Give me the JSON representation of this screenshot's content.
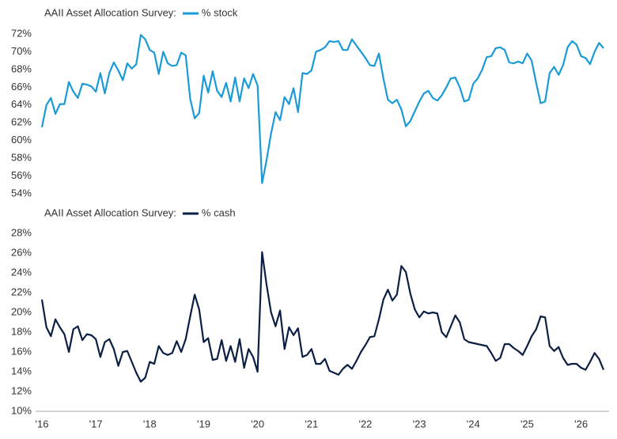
{
  "chart_data": [
    {
      "type": "line",
      "title": "AAII Asset Allocation Survey:",
      "series": [
        {
          "name": "% stock",
          "color": "#1a9bd7",
          "values": [
            61.5,
            64.0,
            64.8,
            63.0,
            64.1,
            64.1,
            66.6,
            65.5,
            64.8,
            66.4,
            66.3,
            66.1,
            65.5,
            67.6,
            65.3,
            67.6,
            68.8,
            67.9,
            66.8,
            68.7,
            68.1,
            68.6,
            71.9,
            71.4,
            70.2,
            69.9,
            67.5,
            70.0,
            68.7,
            68.4,
            68.5,
            69.9,
            69.6,
            64.7,
            62.5,
            63.1,
            67.3,
            65.4,
            67.8,
            65.6,
            64.9,
            66.5,
            64.4,
            67.1,
            64.4,
            67.0,
            65.9,
            67.5,
            66.2,
            55.2,
            57.8,
            60.8,
            63.2,
            62.3,
            64.9,
            64.1,
            65.9,
            63.2,
            67.6,
            67.5,
            67.9,
            70.0,
            70.2,
            70.5,
            71.2,
            71.1,
            71.2,
            70.2,
            70.2,
            71.4,
            70.7,
            70.0,
            69.3,
            68.5,
            68.4,
            69.8,
            67.0,
            64.6,
            64.2,
            64.6,
            63.5,
            61.6,
            62.2,
            63.3,
            64.4,
            65.3,
            65.6,
            64.8,
            64.5,
            65.1,
            66.0,
            67.0,
            67.1,
            66.0,
            64.4,
            64.6,
            66.4,
            67.0,
            68.0,
            69.4,
            69.5,
            70.4,
            70.5,
            70.2,
            68.8,
            68.7,
            68.9,
            68.7,
            69.8,
            69.0,
            66.5,
            64.2,
            64.4,
            67.6,
            68.3,
            67.4,
            68.5,
            70.5,
            71.2,
            70.8,
            69.5,
            69.3,
            68.6,
            70.0,
            71.0,
            70.4
          ]
        }
      ],
      "ylim": [
        54,
        72
      ],
      "yticks": [
        {
          "value": 54,
          "label": "54%"
        },
        {
          "value": 56,
          "label": "56%"
        },
        {
          "value": 58,
          "label": "58%"
        },
        {
          "value": 60,
          "label": "60%"
        },
        {
          "value": 62,
          "label": "62%"
        },
        {
          "value": 64,
          "label": "64%"
        },
        {
          "value": 66,
          "label": "66%"
        },
        {
          "value": 68,
          "label": "68%"
        },
        {
          "value": 70,
          "label": "70%"
        },
        {
          "value": 72,
          "label": "72%"
        }
      ],
      "grid": false
    },
    {
      "type": "line",
      "title": "AAII Asset Allocation Survey:",
      "categories": [
        "'16",
        null,
        null,
        null,
        null,
        null,
        null,
        null,
        null,
        null,
        null,
        null,
        "'17",
        null,
        null,
        null,
        null,
        null,
        null,
        null,
        null,
        null,
        null,
        null,
        "'18",
        null,
        null,
        null,
        null,
        null,
        null,
        null,
        null,
        null,
        null,
        null,
        "'19",
        null,
        null,
        null,
        null,
        null,
        null,
        null,
        null,
        null,
        null,
        null,
        "'20",
        null,
        null,
        null,
        null,
        null,
        null,
        null,
        null,
        null,
        null,
        null,
        "'21",
        null,
        null,
        null,
        null,
        null,
        null,
        null,
        null,
        null,
        null,
        null,
        "'22",
        null,
        null,
        null,
        null,
        null,
        null,
        null,
        null,
        null,
        null,
        null,
        "'23",
        null,
        null,
        null,
        null,
        null,
        null,
        null,
        null,
        null,
        null,
        null,
        "'24",
        null,
        null,
        null,
        null,
        null,
        null,
        null,
        null,
        null,
        null,
        null,
        "'25",
        null,
        null,
        null,
        null,
        null,
        null,
        null,
        null,
        null,
        null,
        null,
        "'26",
        null,
        null,
        null,
        null,
        null
      ],
      "series": [
        {
          "name": "% cash",
          "color": "#0b1f45",
          "values": [
            21.3,
            18.5,
            17.6,
            19.3,
            18.5,
            17.8,
            16.0,
            18.3,
            18.6,
            17.2,
            17.8,
            17.7,
            17.3,
            15.5,
            17.0,
            17.3,
            16.3,
            14.6,
            16.0,
            16.1,
            15.0,
            13.9,
            13.0,
            13.4,
            15.0,
            14.8,
            16.6,
            15.9,
            15.7,
            15.9,
            17.1,
            16.0,
            17.3,
            19.6,
            21.8,
            20.3,
            17.0,
            17.4,
            15.2,
            15.3,
            17.2,
            15.1,
            16.6,
            15.0,
            17.3,
            14.4,
            16.3,
            15.5,
            14.0,
            26.1,
            22.8,
            20.0,
            18.6,
            20.2,
            16.3,
            18.5,
            17.7,
            18.4,
            15.5,
            15.7,
            16.3,
            14.8,
            14.8,
            15.3,
            14.1,
            13.9,
            13.7,
            14.3,
            14.7,
            14.3,
            15.1,
            16.0,
            16.7,
            17.5,
            17.6,
            19.3,
            21.3,
            22.3,
            21.2,
            21.8,
            24.7,
            24.1,
            21.9,
            20.3,
            19.5,
            20.1,
            19.9,
            20.0,
            19.9,
            18.0,
            17.5,
            18.6,
            19.7,
            19.0,
            17.3,
            17.0,
            16.9,
            16.8,
            16.7,
            16.6,
            15.9,
            15.1,
            15.4,
            16.8,
            16.8,
            16.4,
            16.1,
            15.7,
            16.6,
            17.6,
            18.3,
            19.6,
            19.5,
            16.6,
            16.1,
            16.5,
            15.4,
            14.7,
            14.8,
            14.8,
            14.4,
            14.2,
            15.0,
            15.9,
            15.3,
            14.2
          ]
        }
      ],
      "ylim": [
        10,
        28
      ],
      "yticks": [
        {
          "value": 10,
          "label": "10%"
        },
        {
          "value": 12,
          "label": "12%"
        },
        {
          "value": 14,
          "label": "14%"
        },
        {
          "value": 16,
          "label": "16%"
        },
        {
          "value": 18,
          "label": "18%"
        },
        {
          "value": 20,
          "label": "20%"
        },
        {
          "value": 22,
          "label": "22%"
        },
        {
          "value": 24,
          "label": "24%"
        },
        {
          "value": 26,
          "label": "26%"
        },
        {
          "value": 28,
          "label": "28%"
        }
      ],
      "grid": false
    }
  ]
}
